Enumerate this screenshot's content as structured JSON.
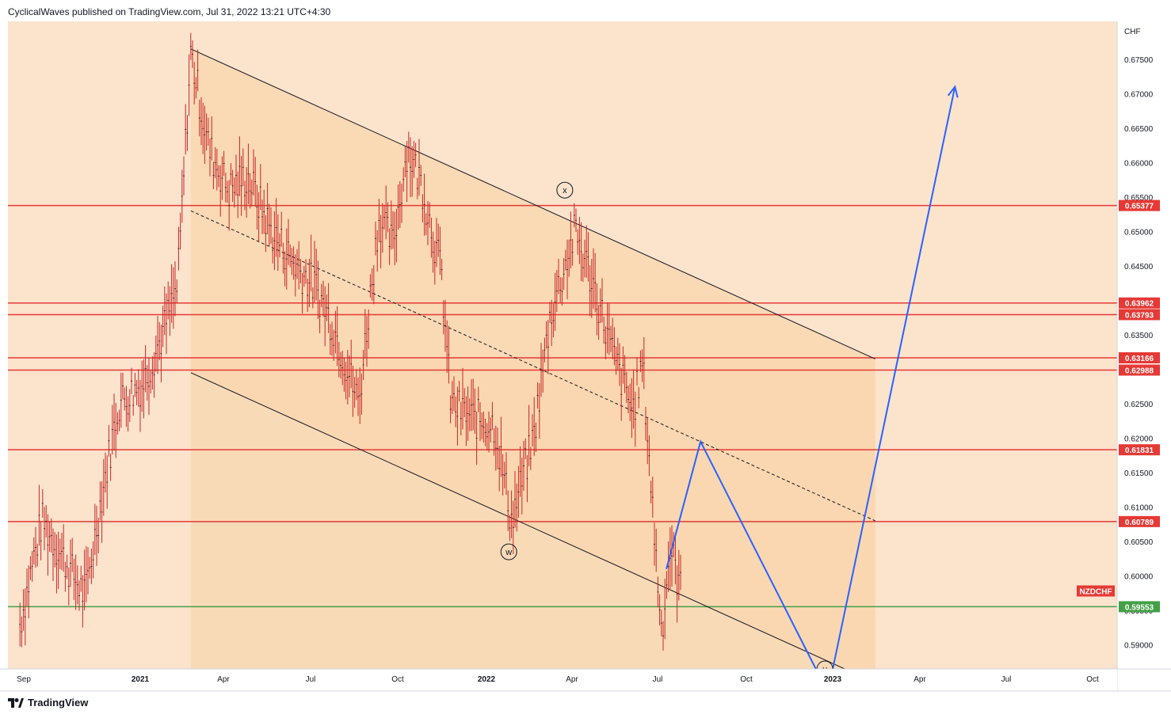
{
  "header": {
    "publisher_line": "CyclicalWaves published on TradingView.com, Jul 31, 2022 13:21 UTC+4:30"
  },
  "footer": {
    "brand": "TradingView",
    "logo": "tradingview-logo-icon"
  },
  "colors": {
    "background": "#fbe3cc",
    "channel_fill": "#f9d6ad",
    "forecast_fill": "#f8d3a8",
    "resistance": "#e53935",
    "support": "#43a047",
    "forecast_path": "#2962ff",
    "candle": "#c62828"
  },
  "chart_data": {
    "type": "line",
    "symbol": "NZDCHF",
    "currency_label": "CHF",
    "x_ticks": [
      "Sep",
      "2021",
      "Apr",
      "Jul",
      "Oct",
      "2022",
      "Apr",
      "Jul",
      "Oct",
      "2023",
      "Apr",
      "Jul",
      "Oct"
    ],
    "y_ticks": [
      "0.67500",
      "0.67000",
      "0.66500",
      "0.66000",
      "0.65500",
      "0.65000",
      "0.64500",
      "0.64000",
      "0.63500",
      "0.63000",
      "0.62500",
      "0.62000",
      "0.61500",
      "0.61000",
      "0.60500",
      "0.60000",
      "0.59500",
      "0.59000"
    ],
    "ylim": [
      0.5865,
      0.6805
    ],
    "price_path": [
      [
        "2020-08-28",
        0.593
      ],
      [
        "2020-09-20",
        0.608
      ],
      [
        "2020-10-15",
        0.602
      ],
      [
        "2020-11-05",
        0.597
      ],
      [
        "2020-11-20",
        0.61
      ],
      [
        "2020-12-10",
        0.625
      ],
      [
        "2021-01-05",
        0.628
      ],
      [
        "2021-01-25",
        0.635
      ],
      [
        "2021-02-10",
        0.642
      ],
      [
        "2021-02-24",
        0.676
      ],
      [
        "2021-03-15",
        0.662
      ],
      [
        "2021-04-05",
        0.656
      ],
      [
        "2021-04-25",
        0.658
      ],
      [
        "2021-05-20",
        0.65
      ],
      [
        "2021-06-15",
        0.645
      ],
      [
        "2021-07-05",
        0.642
      ],
      [
        "2021-07-25",
        0.636
      ],
      [
        "2021-08-20",
        0.625
      ],
      [
        "2021-09-10",
        0.652
      ],
      [
        "2021-09-25",
        0.648
      ],
      [
        "2021-10-10",
        0.662
      ],
      [
        "2021-10-25",
        0.657
      ],
      [
        "2021-11-15",
        0.644
      ],
      [
        "2021-11-25",
        0.625
      ],
      [
        "2021-12-15",
        0.623
      ],
      [
        "2022-01-10",
        0.622
      ],
      [
        "2022-01-28",
        0.608
      ],
      [
        "2022-02-20",
        0.62
      ],
      [
        "2022-03-10",
        0.638
      ],
      [
        "2022-04-05",
        0.65
      ],
      [
        "2022-04-25",
        0.642
      ],
      [
        "2022-05-15",
        0.632
      ],
      [
        "2022-06-05",
        0.624
      ],
      [
        "2022-06-15",
        0.631
      ],
      [
        "2022-06-28",
        0.605
      ],
      [
        "2022-07-05",
        0.592
      ],
      [
        "2022-07-14",
        0.604
      ],
      [
        "2022-07-25",
        0.598
      ]
    ],
    "horizontal_levels": [
      {
        "label": "0.65377",
        "value": 0.65377,
        "kind": "resistance"
      },
      {
        "label": "0.63962",
        "value": 0.63962,
        "kind": "resistance"
      },
      {
        "label": "0.63793",
        "value": 0.63793,
        "kind": "resistance"
      },
      {
        "label": "0.63166",
        "value": 0.63166,
        "kind": "resistance"
      },
      {
        "label": "0.62988",
        "value": 0.62988,
        "kind": "resistance"
      },
      {
        "label": "0.61831",
        "value": 0.61831,
        "kind": "resistance"
      },
      {
        "label": "0.60789",
        "value": 0.60789,
        "kind": "resistance"
      },
      {
        "label": "0.59553",
        "value": 0.59553,
        "kind": "support"
      }
    ],
    "current_price_label": "NZDCHF",
    "channel": {
      "upper": [
        [
          "2021-02-24",
          0.6765
        ],
        [
          "2023-02-15",
          0.6315
        ]
      ],
      "lower": [
        [
          "2021-02-24",
          0.6295
        ],
        [
          "2023-02-15",
          0.5845
        ]
      ],
      "mid": [
        [
          "2021-02-24",
          0.653
        ],
        [
          "2023-02-15",
          0.608
        ]
      ]
    },
    "forecast_path": [
      [
        "2022-07-10",
        0.601
      ],
      [
        "2022-08-15",
        0.6195
      ],
      [
        "2022-12-20",
        0.585
      ],
      [
        "2022-12-30",
        0.585
      ],
      [
        "2023-05-10",
        0.671
      ]
    ],
    "wave_labels": [
      "x",
      "w",
      "y"
    ]
  }
}
